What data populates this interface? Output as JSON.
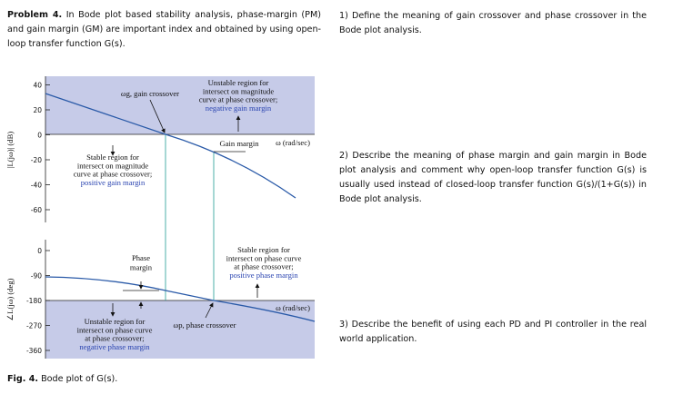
{
  "problem": {
    "label": "Problem 4.",
    "text": "In Bode plot based stability analysis, phase-margin (PM) and gain margin (GM) are important index and obtained by using open-loop transfer function G(s)."
  },
  "figure": {
    "magnitude_axis": {
      "label": "|L(jω)| (dB)",
      "ticks": [
        40,
        20,
        0,
        -20,
        -40,
        -60
      ]
    },
    "phase_axis": {
      "label": "∠L(jω) (deg)",
      "ticks": [
        0,
        -90,
        -180,
        -270,
        -360
      ]
    },
    "gain_crossover": "ωg, gain crossover",
    "phase_crossover": "ωp, phase crossover",
    "gain_margin": "Gain margin",
    "phase_margin": [
      "Phase",
      "margin"
    ],
    "magnitude_x_unit": "ω (rad/sec)",
    "phase_x_unit": "ω (rad/sec)",
    "unstable_magnitude": [
      "Unstable region for",
      "intersect on magnitude",
      "curve at phase crossover;",
      "negative gain margin"
    ],
    "stable_magnitude": [
      "Stable region for",
      "intersect on magnitude",
      "curve at phase crossover;",
      "positive gain margin"
    ],
    "stable_phase": [
      "Stable region for",
      "intersect on phase curve",
      "at phase crossover;",
      "positive phase margin"
    ],
    "unstable_phase": [
      "Unstable region for",
      "intersect on phase curve",
      "at phase crossover;",
      "negative phase margin"
    ],
    "caption": {
      "label": "Fig. 4.",
      "text": "Bode plot of G(s)."
    }
  },
  "questions": [
    "1) Define the meaning of gain crossover and phase crossover in the Bode plot analysis.",
    "2) Describe the meaning of phase margin and gain margin in Bode plot analysis and comment why open-loop transfer function G(s) is usually used instead of closed-loop transfer function G(s)/(1+G(s)) in Bode plot analysis.",
    "3) Describe the benefit of using each PD and PI controller in the real world application."
  ]
}
